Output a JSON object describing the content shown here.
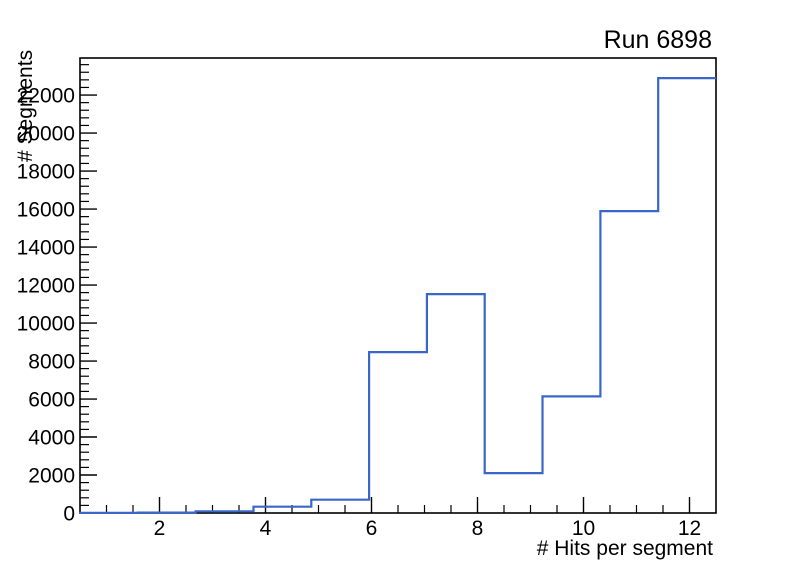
{
  "chart_data": {
    "type": "bar",
    "subtype": "step-histogram",
    "title": "Run 6898",
    "xlabel": "# Hits per segment",
    "ylabel": "# Segments",
    "xlim": [
      0.5,
      12.5
    ],
    "ylim": [
      0,
      23950
    ],
    "x_major_ticks": [
      2,
      4,
      6,
      8,
      10,
      12
    ],
    "x_minor_step": 0.5,
    "y_major_ticks": [
      0,
      2000,
      4000,
      6000,
      8000,
      10000,
      12000,
      14000,
      16000,
      18000,
      20000,
      22000
    ],
    "y_minor_step": 400,
    "bin_edges": [
      0.5,
      1.5909,
      2.6818,
      3.7727,
      4.8636,
      5.9545,
      7.0455,
      8.1364,
      9.2273,
      10.3182,
      11.4091,
      12.5
    ],
    "counts": [
      5,
      20,
      90,
      330,
      700,
      8470,
      11520,
      2100,
      6140,
      15890,
      22890
    ],
    "line_color": "#3A66C8",
    "axis_color": "#000000",
    "background_color": "#FFFFFF",
    "grid": false,
    "legend": "none"
  }
}
